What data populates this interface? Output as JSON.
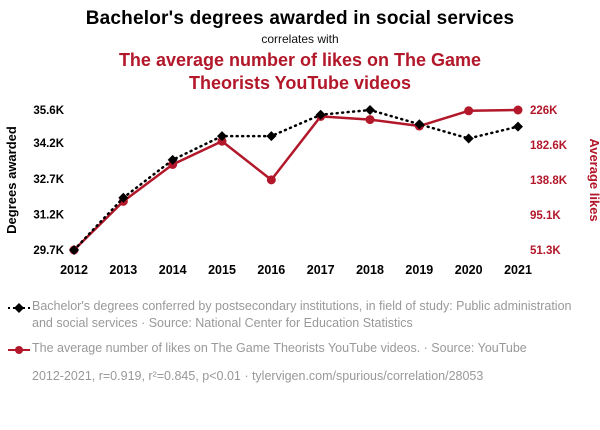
{
  "title": "Bachelor's degrees awarded in social services",
  "correlates_label": "correlates with",
  "subtitle": "The average number of likes on The Game Theorists YouTube videos",
  "colors": {
    "accent_red": "#b2172a",
    "series_black": "#000000",
    "legend_gray": "#999999"
  },
  "chart_data": {
    "type": "line",
    "x": [
      2012,
      2013,
      2014,
      2015,
      2016,
      2017,
      2018,
      2019,
      2020,
      2021
    ],
    "left_axis": {
      "label": "Degrees awarded",
      "ticks": [
        "29.7K",
        "31.2K",
        "32.7K",
        "34.2K",
        "35.6K"
      ],
      "tick_values": [
        29700,
        31200,
        32700,
        34200,
        35600
      ],
      "min": 29700,
      "max": 35600
    },
    "right_axis": {
      "label": "Average likes",
      "ticks": [
        "51.3K",
        "95.1K",
        "138.8K",
        "182.6K",
        "226K"
      ],
      "tick_values": [
        51300,
        95100,
        138800,
        182600,
        226000
      ],
      "min": 51300,
      "max": 226000
    },
    "series": [
      {
        "name": "The average number of likes on The Game Theorists YouTube videos",
        "axis": "right_axis",
        "color": "#b2172a",
        "style": "solid",
        "marker": "circle",
        "values": [
          51300,
          112000,
          158000,
          187000,
          138800,
          218000,
          214000,
          206000,
          225000,
          226000
        ]
      },
      {
        "name": "Bachelor's degrees conferred: Public administration and social services",
        "axis": "left_axis",
        "color": "#000000",
        "style": "dotted",
        "marker": "diamond",
        "values": [
          29700,
          31900,
          33500,
          34500,
          34500,
          35400,
          35600,
          35000,
          34400,
          34900
        ]
      }
    ],
    "grid": false,
    "legend_position": "bottom"
  },
  "legend": [
    {
      "marker": "black-diamond-dotted-line",
      "text": "Bachelor's degrees conferred by postsecondary institutions, in field of study: Public administration and social services · Source: National Center for Education Statistics"
    },
    {
      "marker": "red-circle-solid-line",
      "text": "The average number of likes on The Game Theorists YouTube videos. · Source: YouTube"
    }
  ],
  "footer": "2012-2021, r=0.919, r²=0.845, p<0.01 · tylervigen.com/spurious/correlation/28053"
}
